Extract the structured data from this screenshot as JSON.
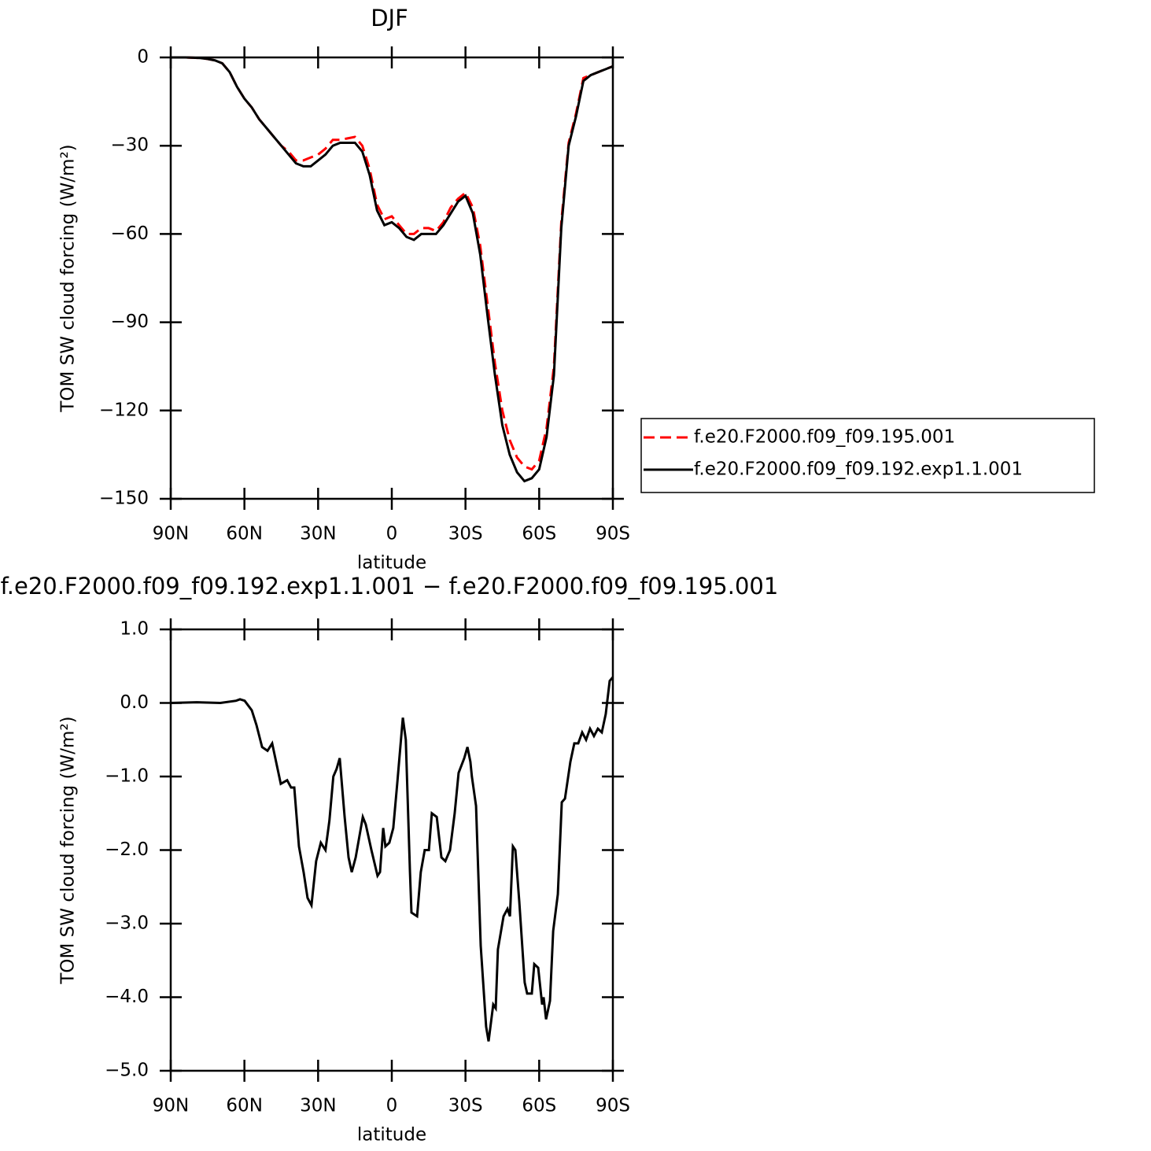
{
  "chart_data": [
    {
      "type": "line",
      "title": "DJF",
      "x_label": "latitude",
      "y_label": "TOM SW cloud forcing (W/m²)",
      "x": [
        90,
        87,
        84,
        81,
        78,
        75,
        72,
        69,
        66,
        63,
        60,
        57,
        54,
        51,
        48,
        45,
        42,
        39,
        36,
        33,
        30,
        27,
        24,
        21,
        18,
        15,
        12,
        9,
        6,
        3,
        0,
        -3,
        -6,
        -9,
        -12,
        -15,
        -18,
        -21,
        -24,
        -27,
        -30,
        -33,
        -36,
        -39,
        -42,
        -45,
        -48,
        -51,
        -54,
        -57,
        -60,
        -63,
        -66,
        -69,
        -72,
        -75,
        -78,
        -81,
        -84,
        -87,
        -90
      ],
      "series": [
        {
          "name": "f.e20.F2000.f09_f09.195.001",
          "color": "#ff0000",
          "line_style": "dashed",
          "values": [
            0,
            0,
            0,
            -0.1,
            -0.2,
            -0.5,
            -1,
            -2,
            -5,
            -10,
            -14,
            -17,
            -21,
            -24,
            -27,
            -30,
            -32,
            -35,
            -35,
            -34,
            -33,
            -31,
            -28,
            -28,
            -27.5,
            -27,
            -30,
            -38,
            -50,
            -55,
            -54,
            -57,
            -60,
            -60,
            -58,
            -58,
            -59,
            -56,
            -51,
            -48,
            -46,
            -51,
            -64,
            -84,
            -104,
            -120,
            -130,
            -136,
            -139,
            -140,
            -137,
            -126,
            -105,
            -56,
            -29,
            -19,
            -7,
            -6,
            -5,
            -4,
            -3
          ]
        },
        {
          "name": "f.e20.F2000.f09_f09.192.exp1.1.001",
          "color": "#000000",
          "line_style": "solid",
          "values": [
            0,
            0,
            0,
            -0.1,
            -0.2,
            -0.5,
            -1,
            -2,
            -5,
            -10,
            -14,
            -17,
            -21,
            -24,
            -27,
            -30,
            -33,
            -36,
            -37,
            -37,
            -35,
            -33,
            -30,
            -29,
            -29,
            -29,
            -32,
            -40,
            -52,
            -57,
            -56,
            -58,
            -61,
            -62,
            -60,
            -60,
            -60,
            -57,
            -53,
            -49,
            -47,
            -53,
            -67,
            -88,
            -108,
            -125,
            -135,
            -141,
            -144,
            -143,
            -140,
            -129,
            -108,
            -58,
            -30,
            -20,
            -8,
            -6,
            -5,
            -4,
            -3
          ]
        }
      ],
      "xlim": [
        90,
        -90
      ],
      "xticks": [
        {
          "value": 90,
          "label": "90N"
        },
        {
          "value": 60,
          "label": "60N"
        },
        {
          "value": 30,
          "label": "30N"
        },
        0,
        {
          "value": -30,
          "label": "30S"
        },
        {
          "value": -60,
          "label": "60S"
        },
        {
          "value": -90,
          "label": "90S"
        }
      ],
      "ylim": [
        -150,
        0
      ],
      "yticks": [
        0,
        {
          "value": -30,
          "label": "−30"
        },
        {
          "value": -60,
          "label": "−60"
        },
        {
          "value": -90,
          "label": "−90"
        },
        {
          "value": -120,
          "label": "−120"
        },
        {
          "value": -150,
          "label": "−150"
        }
      ],
      "legend": "right"
    },
    {
      "type": "line",
      "title": "f.e20.F2000.f09_f09.192.exp1.1.001 − f.e20.F2000.f09_f09.195.001",
      "x_label": "latitude",
      "y_label": "TOM SW cloud forcing (W/m²)",
      "x": [
        90,
        79.4,
        69.8,
        63.4,
        61.8,
        59.9,
        57.0,
        55.1,
        52.8,
        50.6,
        48.7,
        45.2,
        42.6,
        41.0,
        39.7,
        37.8,
        35.9,
        34.3,
        32.7,
        30.8,
        28.9,
        27.0,
        25.4,
        23.8,
        22.5,
        21.2,
        19.2,
        17.6,
        16.3,
        14.7,
        11.8,
        10.6,
        8.3,
        5.8,
        4.8,
        3.5,
        2.6,
        1.0,
        -0.6,
        -2.2,
        -4.5,
        -5.7,
        -7.4,
        -8.0,
        -10.3,
        -11.8,
        -13.4,
        -15.1,
        -16.3,
        -18.3,
        -20.2,
        -21.8,
        -23.7,
        -25.6,
        -27.2,
        -29.5,
        -30.8,
        -32.0,
        -32.6,
        -34.3,
        -36.2,
        -38.4,
        -39.4,
        -41.3,
        -42.3,
        -43.2,
        -45.5,
        -47.1,
        -48.1,
        -49.3,
        -50.3,
        -51.9,
        -54.1,
        -55.1,
        -57.0,
        -58.0,
        -59.6,
        -61.2,
        -61.8,
        -62.8,
        -64.4,
        -65.7,
        -67.6,
        -69.2,
        -70.5,
        -72.7,
        -74.3,
        -75.9,
        -77.5,
        -79.1,
        -80.7,
        -82.3,
        -83.9,
        -85.5,
        -87.1,
        -88.7,
        -90
      ],
      "series": [
        {
          "color": "#000000",
          "line_style": "solid",
          "values": [
            0,
            0.01,
            0,
            0.03,
            0.05,
            0.03,
            -0.1,
            -0.3,
            -0.6,
            -0.65,
            -0.55,
            -1.1,
            -1.05,
            -1.15,
            -1.15,
            -1.95,
            -2.3,
            -2.65,
            -2.75,
            -2.15,
            -1.9,
            -2.0,
            -1.6,
            -1.0,
            -0.9,
            -0.75,
            -1.55,
            -2.1,
            -2.3,
            -2.1,
            -1.55,
            -1.65,
            -2.0,
            -2.35,
            -2.3,
            -1.7,
            -1.95,
            -1.9,
            -1.7,
            -1.1,
            -0.2,
            -0.5,
            -2.3,
            -2.85,
            -2.9,
            -2.3,
            -2.0,
            -2.0,
            -1.5,
            -1.55,
            -2.1,
            -2.15,
            -2.0,
            -1.5,
            -0.95,
            -0.75,
            -0.6,
            -0.8,
            -1.0,
            -1.4,
            -3.3,
            -4.4,
            -4.6,
            -4.1,
            -4.15,
            -3.35,
            -2.9,
            -2.8,
            -2.9,
            -1.95,
            -2.0,
            -2.7,
            -3.8,
            -3.95,
            -3.95,
            -3.55,
            -3.6,
            -4.1,
            -4.0,
            -4.3,
            -4.05,
            -3.1,
            -2.6,
            -1.35,
            -1.3,
            -0.8,
            -0.55,
            -0.55,
            -0.4,
            -0.5,
            -0.35,
            -0.45,
            -0.35,
            -0.4,
            -0.15,
            0.3,
            0.35
          ]
        }
      ],
      "xlim": [
        90,
        -90
      ],
      "xticks": [
        {
          "value": 90,
          "label": "90N"
        },
        {
          "value": 60,
          "label": "60N"
        },
        {
          "value": 30,
          "label": "30N"
        },
        0,
        {
          "value": -30,
          "label": "30S"
        },
        {
          "value": -60,
          "label": "60S"
        },
        {
          "value": -90,
          "label": "90S"
        }
      ],
      "ylim": [
        -5,
        1
      ],
      "yticks": [
        {
          "value": 1,
          "label": "1.0"
        },
        {
          "value": 0,
          "label": "0.0"
        },
        {
          "value": -1,
          "label": "−1.0"
        },
        {
          "value": -2,
          "label": "−2.0"
        },
        {
          "value": -3,
          "label": "−3.0"
        },
        {
          "value": -4,
          "label": "−4.0"
        },
        {
          "value": -5,
          "label": "−5.0"
        }
      ]
    }
  ]
}
